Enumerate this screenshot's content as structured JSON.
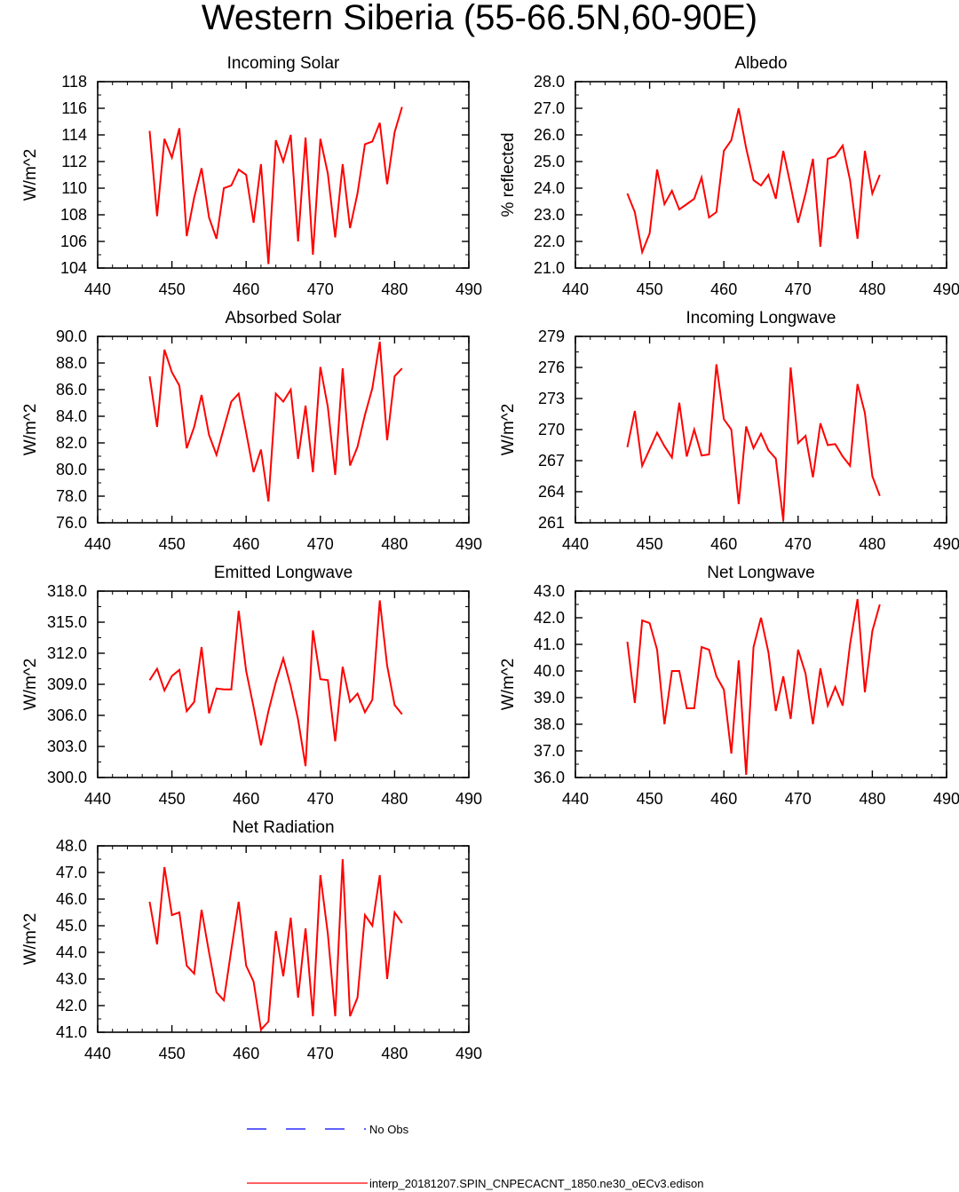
{
  "title": "Western Siberia (55-66.5N,60-90E)",
  "legend": {
    "obs_label": "No Obs",
    "obs_color": "#0000ff",
    "model_label": "interp_20181207.SPIN_CNPECACNT_1850.ne30_oECv3.edison",
    "model_color": "#ff0000"
  },
  "chart_data": [
    {
      "type": "line",
      "title": "Incoming Solar",
      "ylabel": "W/m^2",
      "xlim": [
        440,
        490
      ],
      "xticks": [
        440,
        450,
        460,
        470,
        480,
        490
      ],
      "xticklabels": [
        "440",
        "450",
        "460",
        "470",
        "480",
        "490"
      ],
      "ylim": [
        104,
        118
      ],
      "yticks": [
        104,
        106,
        108,
        110,
        112,
        114,
        116,
        118
      ],
      "yticklabels": [
        "104",
        "106",
        "108",
        "110",
        "112",
        "114",
        "116",
        "118"
      ],
      "grid": false,
      "series": [
        {
          "color": "#ff0000",
          "x": [
            447,
            448,
            449,
            450,
            451,
            452,
            453,
            454,
            455,
            456,
            457,
            458,
            459,
            460,
            461,
            462,
            463,
            464,
            465,
            466,
            467,
            468,
            469,
            470,
            471,
            472,
            473,
            474,
            475,
            476,
            477,
            478,
            479,
            480,
            481
          ],
          "values": [
            114.3,
            107.9,
            113.7,
            112.3,
            114.5,
            106.4,
            109.3,
            111.5,
            107.8,
            106.2,
            110.0,
            110.2,
            111.4,
            111.0,
            107.4,
            111.8,
            104.3,
            113.6,
            112.0,
            114.0,
            106.0,
            113.8,
            105.0,
            113.7,
            111.1,
            106.3,
            111.8,
            107.0,
            109.6,
            113.3,
            113.5,
            114.9,
            110.3,
            114.2,
            116.1
          ]
        }
      ]
    },
    {
      "type": "line",
      "title": "Albedo",
      "ylabel": "% reflected",
      "xlim": [
        440,
        490
      ],
      "xticks": [
        440,
        450,
        460,
        470,
        480,
        490
      ],
      "xticklabels": [
        "440",
        "450",
        "460",
        "470",
        "480",
        "490"
      ],
      "ylim": [
        21,
        28
      ],
      "yticks": [
        21,
        22,
        23,
        24,
        25,
        26,
        27,
        28
      ],
      "yticklabels": [
        "21.0",
        "22.0",
        "23.0",
        "24.0",
        "25.0",
        "26.0",
        "27.0",
        "28.0"
      ],
      "grid": false,
      "series": [
        {
          "color": "#ff0000",
          "x": [
            447,
            448,
            449,
            450,
            451,
            452,
            453,
            454,
            455,
            456,
            457,
            458,
            459,
            460,
            461,
            462,
            463,
            464,
            465,
            466,
            467,
            468,
            469,
            470,
            471,
            472,
            473,
            474,
            475,
            476,
            477,
            478,
            479,
            480,
            481
          ],
          "values": [
            23.8,
            23.1,
            21.6,
            22.3,
            24.7,
            23.4,
            23.9,
            23.2,
            23.4,
            23.6,
            24.4,
            22.9,
            23.1,
            25.4,
            25.8,
            27.0,
            25.5,
            24.3,
            24.1,
            24.5,
            23.6,
            25.4,
            24.1,
            22.7,
            23.8,
            25.1,
            21.8,
            25.1,
            25.2,
            25.6,
            24.3,
            22.1,
            25.4,
            23.8,
            24.5
          ]
        }
      ]
    },
    {
      "type": "line",
      "title": "Absorbed Solar",
      "ylabel": "W/m^2",
      "xlim": [
        440,
        490
      ],
      "xticks": [
        440,
        450,
        460,
        470,
        480,
        490
      ],
      "xticklabels": [
        "440",
        "450",
        "460",
        "470",
        "480",
        "490"
      ],
      "ylim": [
        76,
        90
      ],
      "yticks": [
        76,
        78,
        80,
        82,
        84,
        86,
        88,
        90
      ],
      "yticklabels": [
        "76.0",
        "78.0",
        "80.0",
        "82.0",
        "84.0",
        "86.0",
        "88.0",
        "90.0"
      ],
      "grid": false,
      "series": [
        {
          "color": "#ff0000",
          "x": [
            447,
            448,
            449,
            450,
            451,
            452,
            453,
            454,
            455,
            456,
            457,
            458,
            459,
            460,
            461,
            462,
            463,
            464,
            465,
            466,
            467,
            468,
            469,
            470,
            471,
            472,
            473,
            474,
            475,
            476,
            477,
            478,
            479,
            480,
            481
          ],
          "values": [
            87.0,
            83.2,
            89.0,
            87.3,
            86.3,
            81.6,
            83.2,
            85.6,
            82.6,
            81.1,
            83.1,
            85.1,
            85.7,
            82.8,
            79.8,
            81.5,
            77.6,
            85.7,
            85.1,
            86.0,
            80.8,
            84.8,
            79.8,
            87.7,
            84.7,
            79.6,
            87.6,
            80.3,
            81.7,
            84.1,
            86.1,
            89.6,
            82.2,
            87.0,
            87.6
          ]
        }
      ]
    },
    {
      "type": "line",
      "title": "Incoming Longwave",
      "ylabel": "W/m^2",
      "xlim": [
        440,
        490
      ],
      "xticks": [
        440,
        450,
        460,
        470,
        480,
        490
      ],
      "xticklabels": [
        "440",
        "450",
        "460",
        "470",
        "480",
        "490"
      ],
      "ylim": [
        261,
        279
      ],
      "yticks": [
        261,
        264,
        267,
        270,
        273,
        276,
        279
      ],
      "yticklabels": [
        "261",
        "264",
        "267",
        "270",
        "273",
        "276",
        "279"
      ],
      "grid": false,
      "series": [
        {
          "color": "#ff0000",
          "x": [
            447,
            448,
            449,
            450,
            451,
            452,
            453,
            454,
            455,
            456,
            457,
            458,
            459,
            460,
            461,
            462,
            463,
            464,
            465,
            466,
            467,
            468,
            469,
            470,
            471,
            472,
            473,
            474,
            475,
            476,
            477,
            478,
            479,
            480,
            481
          ],
          "values": [
            268.3,
            271.8,
            266.5,
            268.1,
            269.7,
            268.4,
            267.3,
            272.6,
            267.4,
            270.0,
            267.5,
            267.6,
            276.3,
            271.0,
            270.0,
            262.8,
            270.3,
            268.2,
            269.6,
            268.0,
            267.2,
            261.2,
            276.0,
            268.7,
            269.4,
            265.4,
            270.6,
            268.5,
            268.6,
            267.4,
            266.5,
            274.4,
            271.6,
            265.5,
            263.6
          ]
        }
      ]
    },
    {
      "type": "line",
      "title": "Emitted Longwave",
      "ylabel": "W/m^2",
      "xlim": [
        440,
        490
      ],
      "xticks": [
        440,
        450,
        460,
        470,
        480,
        490
      ],
      "xticklabels": [
        "440",
        "450",
        "460",
        "470",
        "480",
        "490"
      ],
      "ylim": [
        300,
        318
      ],
      "yticks": [
        300,
        303,
        306,
        309,
        312,
        315,
        318
      ],
      "yticklabels": [
        "300.0",
        "303.0",
        "306.0",
        "309.0",
        "312.0",
        "315.0",
        "318.0"
      ],
      "grid": false,
      "series": [
        {
          "color": "#ff0000",
          "x": [
            447,
            448,
            449,
            450,
            451,
            452,
            453,
            454,
            455,
            456,
            457,
            458,
            459,
            460,
            461,
            462,
            463,
            464,
            465,
            466,
            467,
            468,
            469,
            470,
            471,
            472,
            473,
            474,
            475,
            476,
            477,
            478,
            479,
            480,
            481
          ],
          "values": [
            309.4,
            310.5,
            308.4,
            309.8,
            310.4,
            306.4,
            307.3,
            312.6,
            306.2,
            308.6,
            308.5,
            308.5,
            316.1,
            310.3,
            306.8,
            303.1,
            306.4,
            309.2,
            311.5,
            308.8,
            305.6,
            301.1,
            314.2,
            309.5,
            309.4,
            303.5,
            310.7,
            307.3,
            308.1,
            306.3,
            307.5,
            317.1,
            310.8,
            307.0,
            306.1
          ]
        }
      ]
    },
    {
      "type": "line",
      "title": "Net Longwave",
      "ylabel": "W/m^2",
      "xlim": [
        440,
        490
      ],
      "xticks": [
        440,
        450,
        460,
        470,
        480,
        490
      ],
      "xticklabels": [
        "440",
        "450",
        "460",
        "470",
        "480",
        "490"
      ],
      "ylim": [
        36,
        43
      ],
      "yticks": [
        36,
        37,
        38,
        39,
        40,
        41,
        42,
        43
      ],
      "yticklabels": [
        "36.0",
        "37.0",
        "38.0",
        "39.0",
        "40.0",
        "41.0",
        "42.0",
        "43.0"
      ],
      "grid": false,
      "series": [
        {
          "color": "#ff0000",
          "x": [
            447,
            448,
            449,
            450,
            451,
            452,
            453,
            454,
            455,
            456,
            457,
            458,
            459,
            460,
            461,
            462,
            463,
            464,
            465,
            466,
            467,
            468,
            469,
            470,
            471,
            472,
            473,
            474,
            475,
            476,
            477,
            478,
            479,
            480,
            481
          ],
          "values": [
            41.1,
            38.8,
            41.9,
            41.8,
            40.8,
            38.0,
            40.0,
            40.0,
            38.6,
            38.6,
            40.9,
            40.8,
            39.8,
            39.3,
            36.9,
            40.4,
            36.1,
            40.9,
            42.0,
            40.7,
            38.5,
            39.8,
            38.2,
            40.8,
            39.9,
            38.0,
            40.1,
            38.7,
            39.4,
            38.7,
            41.0,
            42.7,
            39.2,
            41.5,
            42.5
          ]
        }
      ]
    },
    {
      "type": "line",
      "title": "Net Radiation",
      "ylabel": "W/m^2",
      "xlim": [
        440,
        490
      ],
      "xticks": [
        440,
        450,
        460,
        470,
        480,
        490
      ],
      "xticklabels": [
        "440",
        "450",
        "460",
        "470",
        "480",
        "490"
      ],
      "ylim": [
        41,
        48
      ],
      "yticks": [
        41,
        42,
        43,
        44,
        45,
        46,
        47,
        48
      ],
      "yticklabels": [
        "41.0",
        "42.0",
        "43.0",
        "44.0",
        "45.0",
        "46.0",
        "47.0",
        "48.0"
      ],
      "grid": false,
      "series": [
        {
          "color": "#ff0000",
          "x": [
            447,
            448,
            449,
            450,
            451,
            452,
            453,
            454,
            455,
            456,
            457,
            458,
            459,
            460,
            461,
            462,
            463,
            464,
            465,
            466,
            467,
            468,
            469,
            470,
            471,
            472,
            473,
            474,
            475,
            476,
            477,
            478,
            479,
            480,
            481
          ],
          "values": [
            45.9,
            44.3,
            47.2,
            45.4,
            45.5,
            43.5,
            43.2,
            45.6,
            44.0,
            42.5,
            42.2,
            44.1,
            45.9,
            43.5,
            42.9,
            41.1,
            41.4,
            44.8,
            43.1,
            45.3,
            42.3,
            44.9,
            41.6,
            46.9,
            44.7,
            41.6,
            47.5,
            41.6,
            42.3,
            45.4,
            45.0,
            46.9,
            43.0,
            45.5,
            45.1
          ]
        }
      ]
    }
  ]
}
